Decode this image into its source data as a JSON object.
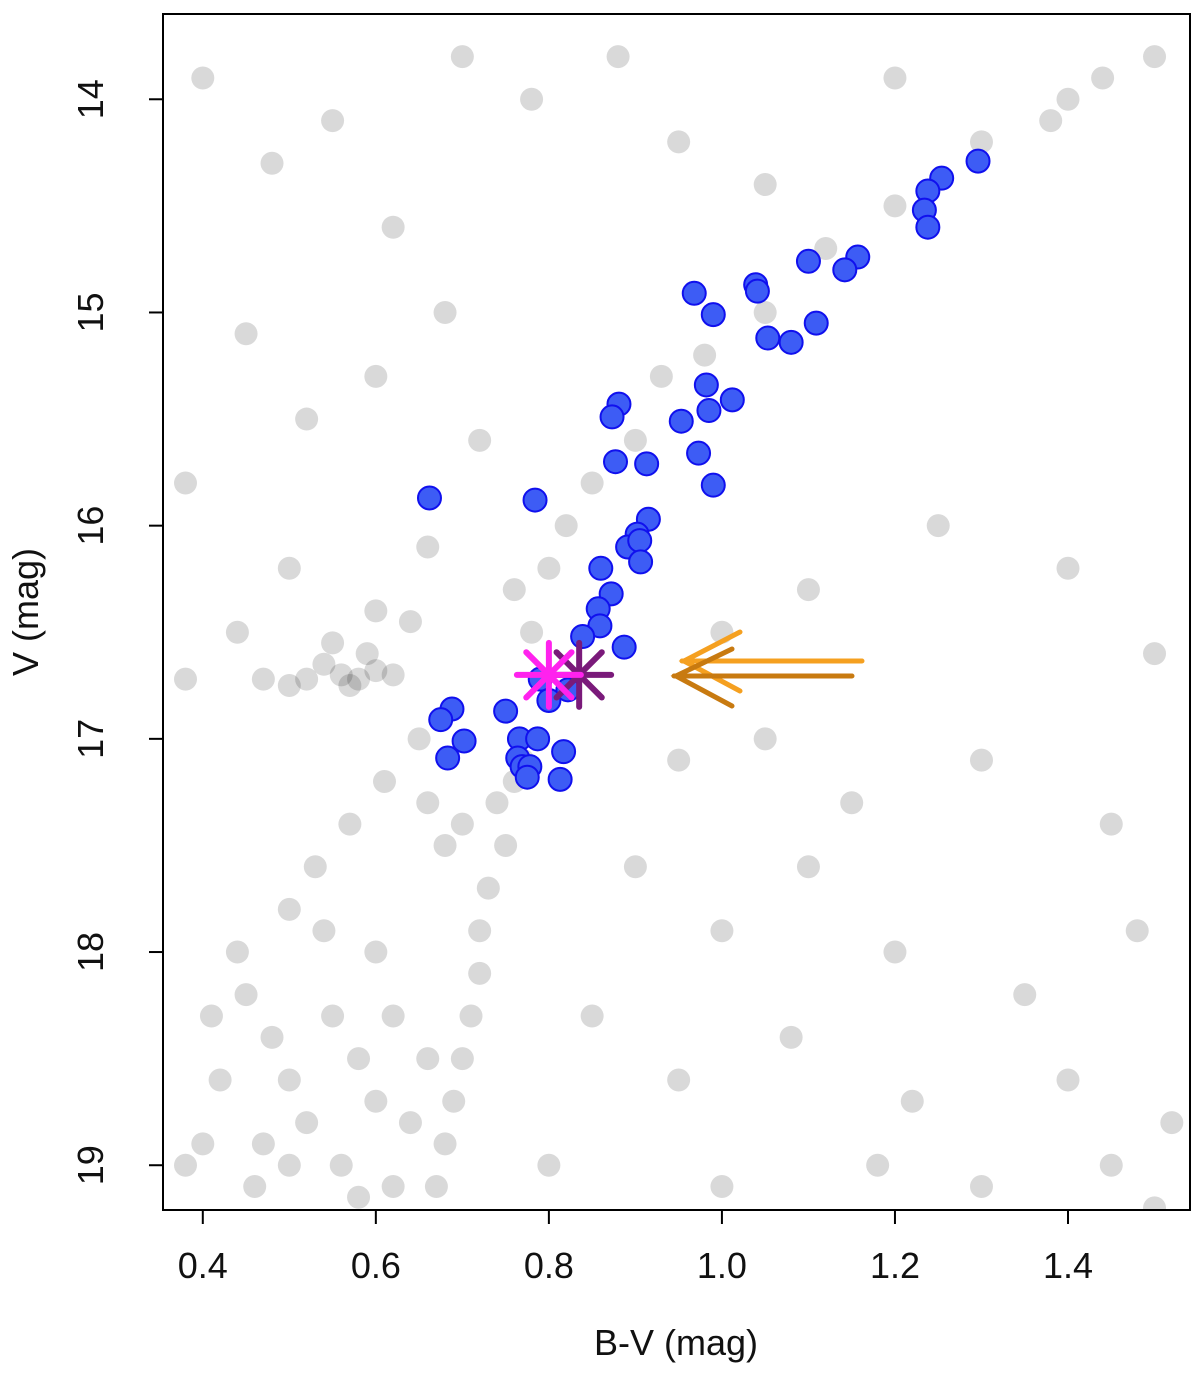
{
  "chart_data": {
    "type": "scatter",
    "xlabel": "B-V (mag)",
    "ylabel": "V (mag)",
    "xlim": [
      0.354,
      1.541
    ],
    "ylim": [
      13.6,
      19.21
    ],
    "y_inverted": true,
    "xticks": [
      0.4,
      0.6,
      0.8,
      {
        "value": 1,
        "label": "1.0"
      },
      1.2,
      1.4
    ],
    "yticks": [
      14,
      15,
      16,
      17,
      18,
      19
    ],
    "series": [
      {
        "color": "rgba(0,0,0,0.15)",
        "marker": "circle",
        "x": [
          0.56,
          0.58,
          0.6,
          0.54,
          0.57,
          0.62,
          0.52,
          0.59,
          0.55,
          0.5,
          0.47,
          0.44,
          0.38,
          0.64,
          0.6,
          0.74,
          0.75,
          0.73,
          0.72,
          0.72,
          0.71,
          0.7,
          0.69,
          0.68,
          0.67,
          0.76,
          0.77,
          0.7,
          0.66,
          0.68,
          0.78,
          0.76,
          0.8,
          0.82,
          0.85,
          0.9,
          0.93,
          0.98,
          1.05,
          1.12,
          1.2,
          1.3,
          1.38,
          1.44,
          0.45,
          0.48,
          0.5,
          0.52,
          0.5,
          0.46,
          0.55,
          0.58,
          0.6,
          0.56,
          0.42,
          0.4,
          0.38,
          0.44,
          0.54,
          0.6,
          0.62,
          0.64,
          0.58,
          0.62,
          0.53,
          0.57,
          0.61,
          0.65,
          0.5,
          0.47,
          0.41,
          0.66,
          0.4,
          0.48,
          0.55,
          0.62,
          0.7,
          0.78,
          0.88,
          0.95,
          1.05,
          1.2,
          1.4,
          1.5,
          0.45,
          0.52,
          0.6,
          0.68,
          0.72,
          0.38,
          0.5,
          0.66,
          1.0,
          1.1,
          1.25,
          1.4,
          1.5,
          0.95,
          1.05,
          1.15,
          1.3,
          1.45,
          0.9,
          1.0,
          1.1,
          1.2,
          1.35,
          1.48,
          0.85,
          0.95,
          1.08,
          1.22,
          1.4,
          1.52,
          0.8,
          1.0,
          1.18,
          1.3,
          1.45,
          1.5
        ],
        "values": [
          16.7,
          16.72,
          16.68,
          16.65,
          16.75,
          16.7,
          16.72,
          16.6,
          16.55,
          16.75,
          16.72,
          16.5,
          16.72,
          16.45,
          16.4,
          17.3,
          17.5,
          17.7,
          17.9,
          18.1,
          18.3,
          18.5,
          18.7,
          18.9,
          19.1,
          17.2,
          17.1,
          17.4,
          17.3,
          17.5,
          16.5,
          16.3,
          16.2,
          16.0,
          15.8,
          15.6,
          15.3,
          15.2,
          15.0,
          14.7,
          14.5,
          14.2,
          14.1,
          13.9,
          18.2,
          18.4,
          18.6,
          18.8,
          19.0,
          19.1,
          18.3,
          18.5,
          18.7,
          19.0,
          18.6,
          18.9,
          19.0,
          18.0,
          17.9,
          18.0,
          18.3,
          18.8,
          19.15,
          19.1,
          17.6,
          17.4,
          17.2,
          17.0,
          17.8,
          18.9,
          18.3,
          18.5,
          13.9,
          14.3,
          14.1,
          14.6,
          13.8,
          14.0,
          13.8,
          14.2,
          14.4,
          13.9,
          14.0,
          13.8,
          15.1,
          15.5,
          15.3,
          15.0,
          15.6,
          15.8,
          16.2,
          16.1,
          16.5,
          16.3,
          16.0,
          16.2,
          16.6,
          17.1,
          17.0,
          17.3,
          17.1,
          17.4,
          17.6,
          17.9,
          17.6,
          18.0,
          18.2,
          17.9,
          18.3,
          18.6,
          18.4,
          18.7,
          18.6,
          18.8,
          19.0,
          19.1,
          19.0,
          19.1,
          19.0,
          19.2
        ]
      },
      {
        "color": "#3d5cf5",
        "edge": "#1010ee",
        "marker": "circle",
        "x": [
          1.296,
          1.254,
          1.238,
          1.234,
          1.238,
          1.157,
          1.142,
          1.1,
          1.039,
          1.041,
          0.968,
          0.99,
          1.109,
          1.053,
          1.08,
          0.982,
          1.012,
          0.985,
          0.881,
          0.873,
          0.953,
          0.973,
          0.877,
          0.913,
          0.99,
          0.662,
          0.784,
          0.915,
          0.902,
          0.891,
          0.905,
          0.906,
          0.86,
          0.872,
          0.857,
          0.859,
          0.887,
          0.839,
          0.822,
          0.8,
          0.79,
          0.75,
          0.688,
          0.675,
          0.702,
          0.683,
          0.766,
          0.787,
          0.817,
          0.764,
          0.769,
          0.778,
          0.775,
          0.813
        ],
        "values": [
          14.29,
          14.37,
          14.43,
          14.52,
          14.6,
          14.74,
          14.8,
          14.76,
          14.87,
          14.9,
          14.91,
          15.01,
          15.05,
          15.12,
          15.14,
          15.34,
          15.41,
          15.46,
          15.43,
          15.49,
          15.51,
          15.66,
          15.7,
          15.71,
          15.81,
          15.87,
          15.88,
          15.97,
          16.04,
          16.1,
          16.07,
          16.17,
          16.2,
          16.32,
          16.39,
          16.47,
          16.57,
          16.52,
          16.77,
          16.82,
          16.72,
          16.87,
          16.86,
          16.91,
          17.01,
          17.09,
          17.0,
          17.0,
          17.06,
          17.09,
          17.13,
          17.13,
          17.18,
          17.19
        ]
      },
      {
        "color": "#7a1a7a",
        "marker": "asterisk",
        "x": [
          0.835
        ],
        "values": [
          16.7
        ]
      },
      {
        "color": "#ff22ee",
        "marker": "asterisk",
        "x": [
          0.8
        ],
        "values": [
          16.7
        ]
      }
    ]
  }
}
